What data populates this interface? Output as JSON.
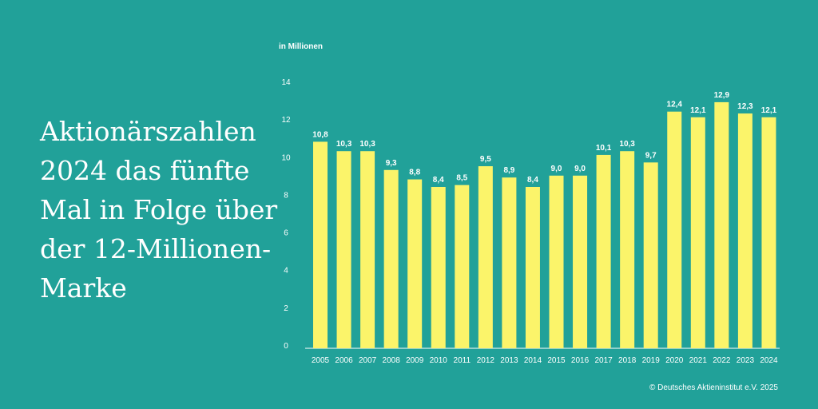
{
  "headline": "Aktionärszahlen 2024 das fünfte Mal in Folge über der 12-Millionen-Marke",
  "footer": "© Deutsches Aktieninstitut e.V. 2025",
  "colors": {
    "background": "#21a199",
    "bar": "#fbf46a",
    "text": "#ffffff"
  },
  "chart_data": {
    "type": "bar",
    "ylabel": "in Millionen",
    "categories": [
      "2005",
      "2006",
      "2007",
      "2008",
      "2009",
      "2010",
      "2011",
      "2012",
      "2013",
      "2014",
      "2015",
      "2016",
      "2017",
      "2018",
      "2019",
      "2020",
      "2021",
      "2022",
      "2023",
      "2024"
    ],
    "values": [
      10.8,
      10.3,
      10.3,
      9.3,
      8.8,
      8.4,
      8.5,
      9.5,
      8.9,
      8.4,
      9.0,
      9.0,
      10.1,
      10.3,
      9.7,
      12.4,
      12.1,
      12.9,
      12.3,
      12.1
    ],
    "value_labels": [
      "10,8",
      "10,3",
      "10,3",
      "9,3",
      "8,8",
      "8,4",
      "8,5",
      "9,5",
      "8,9",
      "8,4",
      "9,0",
      "9,0",
      "10,1",
      "10,3",
      "9,7",
      "12,4",
      "12,1",
      "12,9",
      "12,3",
      "12,1"
    ],
    "yticks": [
      "0",
      "2",
      "4",
      "6",
      "8",
      "10",
      "12",
      "14"
    ],
    "ylim": [
      0,
      14
    ],
    "grid": false,
    "legend": "none"
  }
}
